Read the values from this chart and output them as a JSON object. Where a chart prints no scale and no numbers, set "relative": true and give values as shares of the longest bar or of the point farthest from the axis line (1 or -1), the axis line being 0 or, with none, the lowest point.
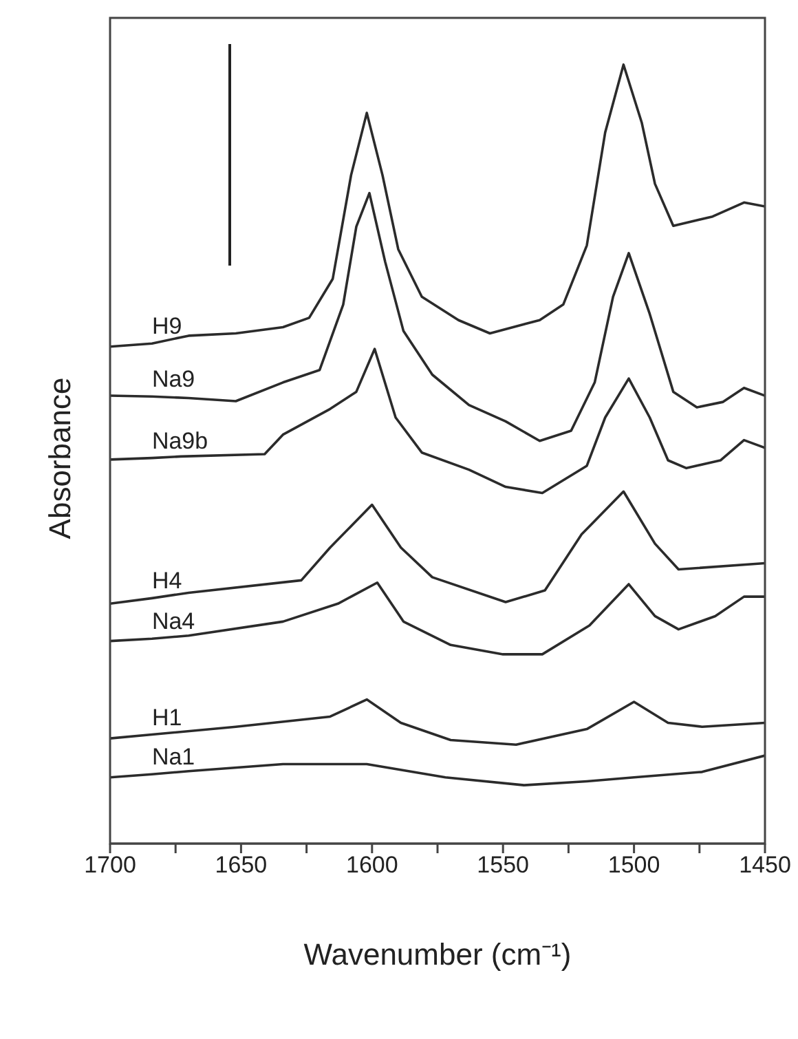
{
  "chart_data": {
    "type": "line",
    "xlabel": "Wavenumber (cm⁻¹)",
    "ylabel": "Absorbance",
    "relative": true,
    "xlim": [
      1700,
      1450
    ],
    "xticks": [
      1700,
      {
        "value": 1675,
        "label": null
      },
      1650,
      {
        "value": 1625,
        "label": null
      },
      1600,
      {
        "value": 1575,
        "label": null
      },
      1550,
      {
        "value": 1525,
        "label": null
      },
      1500,
      {
        "value": 1475,
        "label": null
      },
      1450
    ],
    "marker": "none",
    "line_style": "solid",
    "series": [
      {
        "name": "H9",
        "color": "#2b2b2b",
        "x": [
          1700,
          1684,
          1670,
          1652,
          1634,
          1624,
          1615,
          1608,
          1602,
          1596,
          1590,
          1581,
          1567,
          1555,
          1536,
          1527,
          1518,
          1511,
          1504,
          1497,
          1492,
          1485,
          1470,
          1458,
          1450
        ],
        "values": [
          0.638,
          0.642,
          0.652,
          0.655,
          0.663,
          0.675,
          0.725,
          0.858,
          0.938,
          0.858,
          0.763,
          0.702,
          0.672,
          0.655,
          0.672,
          0.692,
          0.768,
          0.913,
          1.0,
          0.925,
          0.847,
          0.793,
          0.805,
          0.823,
          0.818
        ]
      },
      {
        "name": "Na9",
        "color": "#2b2b2b",
        "x": [
          1700,
          1684,
          1670,
          1652,
          1634,
          1620,
          1611,
          1606,
          1601,
          1595,
          1588,
          1577,
          1563,
          1549,
          1536,
          1524,
          1515,
          1508,
          1502,
          1494,
          1485,
          1476,
          1466,
          1458,
          1450
        ],
        "values": [
          0.575,
          0.574,
          0.572,
          0.568,
          0.592,
          0.608,
          0.692,
          0.792,
          0.835,
          0.747,
          0.658,
          0.602,
          0.563,
          0.542,
          0.517,
          0.53,
          0.592,
          0.702,
          0.758,
          0.68,
          0.58,
          0.56,
          0.567,
          0.585,
          0.575
        ]
      },
      {
        "name": "Na9b",
        "color": "#2b2b2b",
        "x": [
          1700,
          1684,
          1673,
          1641,
          1634,
          1616,
          1606,
          1599,
          1591,
          1581,
          1563,
          1549,
          1535,
          1518,
          1511,
          1502,
          1494,
          1487,
          1480,
          1467,
          1458,
          1450
        ],
        "values": [
          0.493,
          0.495,
          0.497,
          0.5,
          0.525,
          0.558,
          0.58,
          0.635,
          0.547,
          0.502,
          0.48,
          0.458,
          0.45,
          0.485,
          0.547,
          0.597,
          0.547,
          0.492,
          0.482,
          0.492,
          0.518,
          0.508
        ]
      },
      {
        "name": "H4",
        "color": "#2b2b2b",
        "x": [
          1700,
          1684,
          1670,
          1627,
          1616,
          1600,
          1589,
          1577,
          1549,
          1534,
          1520,
          1504,
          1492,
          1483,
          1450
        ],
        "values": [
          0.308,
          0.315,
          0.322,
          0.338,
          0.38,
          0.435,
          0.38,
          0.342,
          0.31,
          0.325,
          0.397,
          0.452,
          0.385,
          0.352,
          0.36
        ]
      },
      {
        "name": "Na4",
        "color": "#2b2b2b",
        "x": [
          1700,
          1684,
          1670,
          1634,
          1613,
          1598,
          1588,
          1570,
          1550,
          1535,
          1517,
          1502,
          1492,
          1483,
          1469,
          1458,
          1450
        ],
        "values": [
          0.26,
          0.263,
          0.267,
          0.285,
          0.308,
          0.335,
          0.285,
          0.255,
          0.243,
          0.243,
          0.28,
          0.333,
          0.292,
          0.275,
          0.292,
          0.317,
          0.317
        ]
      },
      {
        "name": "H1",
        "color": "#2b2b2b",
        "x": [
          1700,
          1684,
          1652,
          1616,
          1602,
          1589,
          1570,
          1545,
          1518,
          1500,
          1487,
          1474,
          1450
        ],
        "values": [
          0.135,
          0.14,
          0.15,
          0.163,
          0.185,
          0.155,
          0.133,
          0.127,
          0.147,
          0.182,
          0.155,
          0.15,
          0.155
        ]
      },
      {
        "name": "Na1",
        "color": "#2b2b2b",
        "x": [
          1700,
          1684,
          1670,
          1634,
          1602,
          1572,
          1542,
          1518,
          1500,
          1474,
          1450
        ],
        "values": [
          0.085,
          0.089,
          0.093,
          0.102,
          0.102,
          0.085,
          0.075,
          0.08,
          0.085,
          0.092,
          0.113
        ]
      }
    ]
  }
}
